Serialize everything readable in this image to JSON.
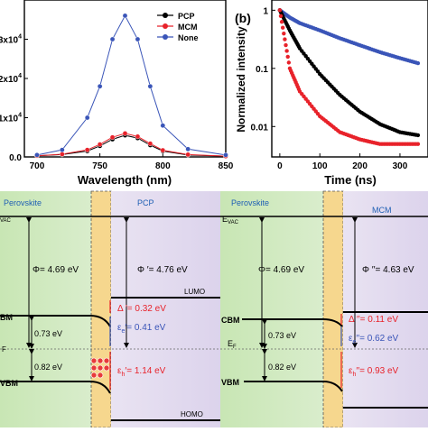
{
  "panel_a": {
    "xlabel": "Wavelength (nm)",
    "xticks": [
      "700",
      "750",
      "800",
      "850"
    ],
    "yticks": [
      "0.0",
      "1x10",
      "2x10",
      "3x10"
    ],
    "ytick_sup": "4",
    "legend": [
      {
        "label": "PCP",
        "color": "#000000"
      },
      {
        "label": "MCM",
        "color": "#e8222a"
      },
      {
        "label": "None",
        "color": "#3a55b8"
      }
    ]
  },
  "panel_b": {
    "label": "(b)",
    "xlabel": "Time (ns)",
    "ylabel": "Normalized intensity",
    "xticks": [
      "0",
      "100",
      "200",
      "300"
    ],
    "yticks": [
      "1",
      "0.1",
      "0.01"
    ]
  },
  "chart_data": [
    {
      "type": "line",
      "xlabel": "Wavelength (nm)",
      "xlim": [
        690,
        850
      ],
      "ylim": [
        0,
        40000
      ],
      "x": [
        700,
        720,
        740,
        750,
        760,
        770,
        780,
        790,
        800,
        820,
        850
      ],
      "series": [
        {
          "name": "PCP",
          "values": [
            300,
            600,
            1500,
            2800,
            4500,
            5500,
            4800,
            3000,
            1500,
            500,
            200
          ]
        },
        {
          "name": "MCM",
          "values": [
            300,
            700,
            1800,
            3200,
            5000,
            6000,
            5200,
            3400,
            1700,
            600,
            200
          ]
        },
        {
          "name": "None",
          "values": [
            500,
            1800,
            10000,
            18000,
            30000,
            36000,
            30000,
            18000,
            8000,
            2000,
            500
          ]
        }
      ],
      "legend_position": "top-right"
    },
    {
      "type": "scatter",
      "xlabel": "Time (ns)",
      "ylabel": "Normalized intensity",
      "y_scale": "log",
      "xlim": [
        -20,
        370
      ],
      "ylim": [
        0.003,
        1.5
      ],
      "x": [
        0,
        25,
        50,
        100,
        150,
        200,
        250,
        300,
        350
      ],
      "series": [
        {
          "name": "PCP",
          "color": "#000000",
          "values": [
            1,
            0.45,
            0.22,
            0.08,
            0.035,
            0.018,
            0.011,
            0.008,
            0.007
          ]
        },
        {
          "name": "MCM",
          "color": "#e8222a",
          "values": [
            1,
            0.1,
            0.04,
            0.015,
            0.008,
            0.006,
            0.005,
            0.005,
            0.005
          ]
        },
        {
          "name": "None",
          "color": "#3a55b8",
          "values": [
            1,
            0.75,
            0.6,
            0.45,
            0.33,
            0.25,
            0.19,
            0.15,
            0.12
          ]
        }
      ]
    }
  ],
  "diagram_left": {
    "material_left": "Perovskite",
    "material_right": "PCP",
    "evac": "VAC",
    "cbm": "BM",
    "ef": "F",
    "vbm": "VBM",
    "phi": "Φ= 4.69 eV",
    "phi_prime": "Φ ′= 4.76 eV",
    "lumo": "LUMO",
    "homo": "HOMO",
    "e_cbm": "0.73 eV",
    "e_vbm": "0.82 eV",
    "delta": "Δ ′= 0.32 eV",
    "eps_e": "ε",
    "eps_e_sub": "e",
    "eps_e_val": "′= 0.41 eV",
    "eps_h": "ε",
    "eps_h_sub": "h",
    "eps_h_val": "′= 1.14 eV"
  },
  "diagram_right": {
    "material_left": "Perovskite",
    "material_right": "MCM",
    "evac": "E",
    "evac_sub": "VAC",
    "cbm": "CBM",
    "ef": "E",
    "ef_sub": "F",
    "vbm": "VBM",
    "phi": "Φ= 4.69 eV",
    "phi_prime": "Φ ′′= 4.63 eV",
    "e_cbm": "0.73 eV",
    "e_vbm": "0.82 eV",
    "delta": "Δ ′′= 0.11 eV",
    "eps_e": "ε",
    "eps_e_sub": "e",
    "eps_e_val": "′′= 0.62 eV",
    "eps_h": "ε",
    "eps_h_sub": "h",
    "eps_h_val": "′′= 0.93 eV"
  }
}
